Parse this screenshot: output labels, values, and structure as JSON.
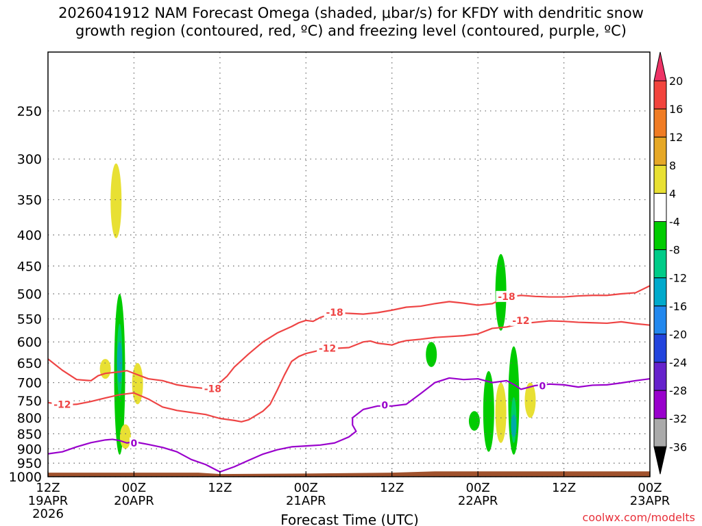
{
  "title": "2026041912 NAM Forecast Omega (shaded, μbar/s) for KFDY with dendritic snow\ngrowth region (contoured, red, ºC) and freezing level (contoured, purple, ºC)",
  "credit": "coolwx.com/modelts",
  "colors": {
    "isotherm": "#ee4444",
    "freezing": "#9900cc",
    "ground": "#a0522d",
    "grid": "#666666"
  },
  "chart_data": {
    "type": "heatmap",
    "xlabel": "Forecast Time (UTC)",
    "ylabel": "",
    "x_range_hours": [
      0,
      84
    ],
    "y_range_hPa": [
      1000,
      200
    ],
    "y_scale": "log",
    "grid": true,
    "x_ticks": [
      {
        "hour": 0,
        "label": "12Z",
        "sub": "19APR",
        "sub2": "2026"
      },
      {
        "hour": 12,
        "label": "00Z",
        "sub": "20APR",
        "sub2": ""
      },
      {
        "hour": 24,
        "label": "12Z",
        "sub": "",
        "sub2": ""
      },
      {
        "hour": 36,
        "label": "00Z",
        "sub": "21APR",
        "sub2": ""
      },
      {
        "hour": 48,
        "label": "12Z",
        "sub": "",
        "sub2": ""
      },
      {
        "hour": 60,
        "label": "00Z",
        "sub": "22APR",
        "sub2": ""
      },
      {
        "hour": 72,
        "label": "12Z",
        "sub": "",
        "sub2": ""
      },
      {
        "hour": 84,
        "label": "00Z",
        "sub": "23APR",
        "sub2": ""
      }
    ],
    "y_ticks": [
      250,
      300,
      350,
      400,
      450,
      500,
      550,
      600,
      650,
      700,
      750,
      800,
      850,
      900,
      950,
      1000
    ],
    "contours": [
      {
        "label": "-18",
        "color": "#ee4444",
        "label_points": [
          [
            23,
            716
          ],
          [
            40,
            536
          ],
          [
            64,
            505
          ]
        ],
        "points": [
          [
            0,
            640
          ],
          [
            2,
            668
          ],
          [
            4,
            692
          ],
          [
            6,
            695
          ],
          [
            7,
            682
          ],
          [
            8,
            676
          ],
          [
            10,
            672
          ],
          [
            11,
            669
          ],
          [
            12,
            676
          ],
          [
            14,
            690
          ],
          [
            16,
            695
          ],
          [
            18,
            706
          ],
          [
            20,
            712
          ],
          [
            22,
            716
          ],
          [
            23,
            720
          ],
          [
            24,
            700
          ],
          [
            25,
            683
          ],
          [
            26,
            660
          ],
          [
            28,
            628
          ],
          [
            30,
            600
          ],
          [
            32,
            580
          ],
          [
            34,
            566
          ],
          [
            35,
            558
          ],
          [
            36,
            553
          ],
          [
            37,
            555
          ],
          [
            38,
            547
          ],
          [
            40,
            537
          ],
          [
            44,
            540
          ],
          [
            46,
            537
          ],
          [
            48,
            532
          ],
          [
            50,
            526
          ],
          [
            52,
            524
          ],
          [
            54,
            519
          ],
          [
            56,
            515
          ],
          [
            58,
            518
          ],
          [
            60,
            522
          ],
          [
            62,
            519
          ],
          [
            64,
            506
          ],
          [
            66,
            503
          ],
          [
            68,
            505
          ],
          [
            70,
            506
          ],
          [
            72,
            506
          ],
          [
            74,
            504
          ],
          [
            76,
            503
          ],
          [
            78,
            503
          ],
          [
            80,
            500
          ],
          [
            82,
            498
          ],
          [
            84,
            485
          ]
        ]
      },
      {
        "label": "-12",
        "color": "#ee4444",
        "label_points": [
          [
            2,
            760
          ],
          [
            39,
            615
          ],
          [
            66,
            553
          ]
        ],
        "points": [
          [
            0,
            755
          ],
          [
            2,
            762
          ],
          [
            4,
            760
          ],
          [
            6,
            752
          ],
          [
            8,
            742
          ],
          [
            10,
            733
          ],
          [
            12,
            728
          ],
          [
            14,
            745
          ],
          [
            16,
            768
          ],
          [
            18,
            778
          ],
          [
            20,
            784
          ],
          [
            22,
            790
          ],
          [
            24,
            802
          ],
          [
            26,
            808
          ],
          [
            27,
            812
          ],
          [
            28,
            806
          ],
          [
            30,
            780
          ],
          [
            31,
            760
          ],
          [
            32,
            720
          ],
          [
            33,
            680
          ],
          [
            34,
            646
          ],
          [
            35,
            634
          ],
          [
            36,
            627
          ],
          [
            38,
            619
          ],
          [
            40,
            615
          ],
          [
            42,
            613
          ],
          [
            44,
            600
          ],
          [
            45,
            598
          ],
          [
            46,
            603
          ],
          [
            48,
            607
          ],
          [
            49,
            601
          ],
          [
            50,
            597
          ],
          [
            52,
            594
          ],
          [
            54,
            590
          ],
          [
            56,
            588
          ],
          [
            58,
            586
          ],
          [
            60,
            582
          ],
          [
            62,
            570
          ],
          [
            64,
            567
          ],
          [
            66,
            560
          ],
          [
            68,
            557
          ],
          [
            70,
            554
          ],
          [
            72,
            555
          ],
          [
            74,
            557
          ],
          [
            76,
            558
          ],
          [
            78,
            559
          ],
          [
            80,
            556
          ],
          [
            82,
            560
          ],
          [
            84,
            563
          ]
        ]
      },
      {
        "label": "0",
        "color": "#9900cc",
        "label_points": [
          [
            12,
            880
          ],
          [
            47,
            762
          ],
          [
            69,
            709
          ]
        ],
        "points": [
          [
            0,
            917
          ],
          [
            2,
            910
          ],
          [
            4,
            893
          ],
          [
            6,
            879
          ],
          [
            8,
            870
          ],
          [
            9,
            868
          ],
          [
            10,
            872
          ],
          [
            11,
            880
          ],
          [
            12,
            876
          ],
          [
            14,
            885
          ],
          [
            16,
            895
          ],
          [
            18,
            910
          ],
          [
            20,
            937
          ],
          [
            22,
            955
          ],
          [
            24,
            982
          ],
          [
            26,
            963
          ],
          [
            28,
            940
          ],
          [
            30,
            918
          ],
          [
            32,
            903
          ],
          [
            34,
            893
          ],
          [
            36,
            890
          ],
          [
            38,
            887
          ],
          [
            40,
            880
          ],
          [
            41,
            870
          ],
          [
            42,
            860
          ],
          [
            43,
            842
          ],
          [
            42.5,
            822
          ],
          [
            42.5,
            800
          ],
          [
            44,
            775
          ],
          [
            46,
            765
          ],
          [
            48,
            765
          ],
          [
            50,
            760
          ],
          [
            52,
            730
          ],
          [
            54,
            700
          ],
          [
            56,
            688
          ],
          [
            58,
            692
          ],
          [
            60,
            690
          ],
          [
            62,
            700
          ],
          [
            64,
            695
          ],
          [
            65,
            705
          ],
          [
            66,
            718
          ],
          [
            68,
            708
          ],
          [
            70,
            704
          ],
          [
            72,
            706
          ],
          [
            74,
            712
          ],
          [
            76,
            707
          ],
          [
            78,
            706
          ],
          [
            80,
            701
          ],
          [
            82,
            695
          ],
          [
            84,
            690
          ]
        ]
      }
    ],
    "omega_cells": [
      {
        "hour": 9.5,
        "p_top": 305,
        "p_bottom": 405,
        "value": 4,
        "color": "#e8e033"
      },
      {
        "hour": 10,
        "p_top": 500,
        "p_bottom": 920,
        "value": -8,
        "color": "#00cc00"
      },
      {
        "hour": 10,
        "p_top": 560,
        "p_bottom": 740,
        "value": -12,
        "color": "#00cc66"
      },
      {
        "hour": 10,
        "p_top": 600,
        "p_bottom": 700,
        "value": -16,
        "color": "#00aaaa"
      },
      {
        "hour": 8,
        "p_top": 640,
        "p_bottom": 690,
        "value": 4,
        "color": "#e8e033"
      },
      {
        "hour": 12.5,
        "p_top": 650,
        "p_bottom": 760,
        "value": 4,
        "color": "#e8e033"
      },
      {
        "hour": 10.8,
        "p_top": 820,
        "p_bottom": 900,
        "value": 4,
        "color": "#e8e033"
      },
      {
        "hour": 53.5,
        "p_top": 600,
        "p_bottom": 660,
        "value": -8,
        "color": "#00cc00"
      },
      {
        "hour": 59.5,
        "p_top": 780,
        "p_bottom": 840,
        "value": -8,
        "color": "#00cc00"
      },
      {
        "hour": 61.5,
        "p_top": 670,
        "p_bottom": 910,
        "value": -8,
        "color": "#00cc00"
      },
      {
        "hour": 63.2,
        "p_top": 430,
        "p_bottom": 575,
        "value": -8,
        "color": "#00cc00"
      },
      {
        "hour": 63.2,
        "p_top": 700,
        "p_bottom": 880,
        "value": 4,
        "color": "#e8e033"
      },
      {
        "hour": 65,
        "p_top": 610,
        "p_bottom": 920,
        "value": -8,
        "color": "#00cc00"
      },
      {
        "hour": 65,
        "p_top": 740,
        "p_bottom": 880,
        "value": -12,
        "color": "#00cc66"
      },
      {
        "hour": 65,
        "p_top": 790,
        "p_bottom": 860,
        "value": -16,
        "color": "#00aaaa"
      },
      {
        "hour": 67.3,
        "p_top": 700,
        "p_bottom": 800,
        "value": 4,
        "color": "#e8e033"
      }
    ],
    "ground_p": [
      {
        "hour": 0,
        "p": 985
      },
      {
        "hour": 21,
        "p": 985
      },
      {
        "hour": 24,
        "p": 990
      },
      {
        "hour": 36,
        "p": 988
      },
      {
        "hour": 48,
        "p": 985
      },
      {
        "hour": 54,
        "p": 980
      },
      {
        "hour": 84,
        "p": 980
      }
    ],
    "colorbar": {
      "label_values": [
        "20",
        "16",
        "12",
        "8",
        "4",
        "-4",
        "-8",
        "-12",
        "-16",
        "-20",
        "-24",
        "-28",
        "-32",
        "-36"
      ],
      "bands": [
        {
          "color": "#ee3366"
        },
        {
          "color": "#f2443d"
        },
        {
          "color": "#f07c24"
        },
        {
          "color": "#e6a826"
        },
        {
          "color": "#e8e033"
        },
        {
          "color": "#ffffff"
        },
        {
          "color": "#00cc00"
        },
        {
          "color": "#00cc88"
        },
        {
          "color": "#00aacc"
        },
        {
          "color": "#2288ee"
        },
        {
          "color": "#2244dd"
        },
        {
          "color": "#6622cc"
        },
        {
          "color": "#9900cc"
        },
        {
          "color": "#aaaaaa"
        },
        {
          "color": "#000000"
        }
      ]
    }
  }
}
